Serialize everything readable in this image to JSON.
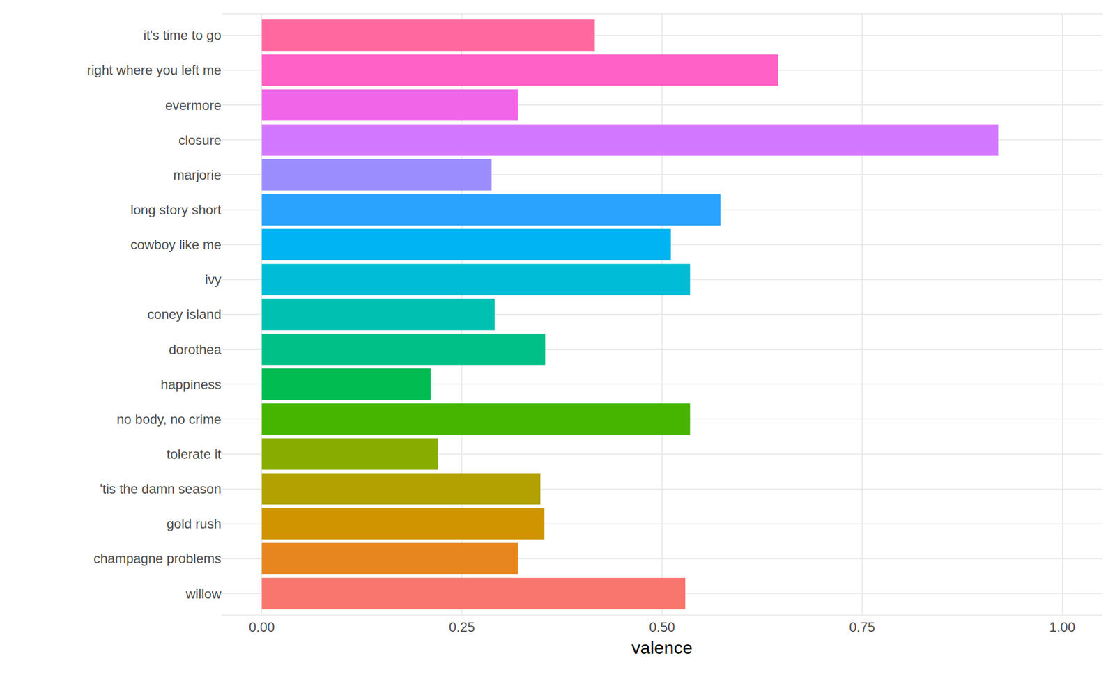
{
  "chart_data": {
    "type": "bar",
    "orientation": "horizontal",
    "x_label": "valence",
    "categories": [
      "it's time to go",
      "right where you left me",
      "evermore",
      "closure",
      "marjorie",
      "long story short",
      "cowboy like me",
      "ivy",
      "coney island",
      "dorothea",
      "happiness",
      "no body, no crime",
      "tolerate it",
      "'tis the damn season",
      "gold rush",
      "champagne problems",
      "willow"
    ],
    "values": [
      0.416,
      0.645,
      0.32,
      0.92,
      0.287,
      0.573,
      0.511,
      0.535,
      0.291,
      0.354,
      0.211,
      0.535,
      0.22,
      0.348,
      0.353,
      0.32,
      0.529
    ],
    "colors": [
      "#FF689E",
      "#FF61C7",
      "#F166E8",
      "#D277FF",
      "#9C8DFF",
      "#29A3FF",
      "#00B3F2",
      "#00BCD6",
      "#00C0B2",
      "#00C087",
      "#00BC51",
      "#45B500",
      "#89AC00",
      "#B2A100",
      "#D09400",
      "#E7851E",
      "#F8766D"
    ],
    "xlim": [
      -0.05,
      1.05
    ],
    "xticks": [
      {
        "value": 0,
        "label": "0.00"
      },
      {
        "value": 0.25,
        "label": "0.25"
      },
      {
        "value": 0.5,
        "label": "0.50"
      },
      {
        "value": 0.75,
        "label": "0.75"
      },
      {
        "value": 1,
        "label": "1.00"
      }
    ],
    "grid": true
  }
}
